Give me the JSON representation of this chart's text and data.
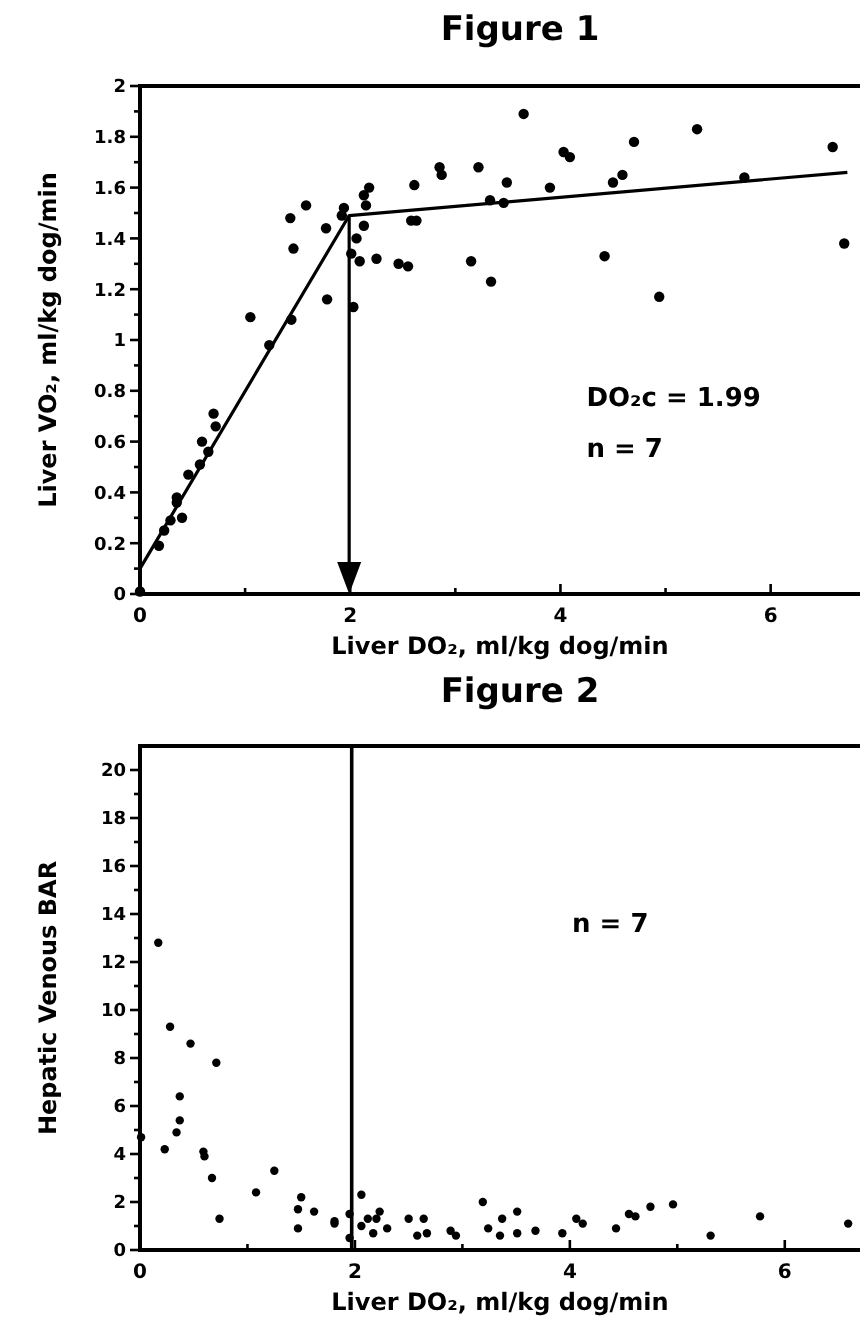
{
  "chart_data": [
    {
      "type": "scatter",
      "title": "Figure 1",
      "xlabel": "Liver DO₂, ml/kg dog/min",
      "ylabel": "Liver VO₂, ml/kg dog/min",
      "xlim": [
        0,
        6.85
      ],
      "xticks": [
        0,
        {
          "value": 1,
          "label": null
        },
        2,
        {
          "value": 3,
          "label": null
        },
        4,
        {
          "value": 5,
          "label": null
        },
        6
      ],
      "ylim": [
        0,
        2
      ],
      "yticks": [
        0,
        {
          "value": 0.1,
          "label": null
        },
        0.2,
        {
          "value": 0.3,
          "label": null
        },
        0.4,
        {
          "value": 0.5,
          "label": null
        },
        0.6,
        {
          "value": 0.7,
          "label": null
        },
        0.8,
        {
          "value": 0.9,
          "label": null
        },
        1,
        {
          "value": 1.1,
          "label": null
        },
        1.2,
        {
          "value": 1.3,
          "label": null
        },
        1.4,
        {
          "value": 1.5,
          "label": null
        },
        1.6,
        {
          "value": 1.7,
          "label": null
        },
        1.8,
        {
          "value": 1.9,
          "label": null
        },
        2
      ],
      "marker": "circle",
      "grid": false,
      "series": [
        {
          "color": "#000000",
          "x": [
            0,
            0.18,
            0.23,
            0.29,
            0.35,
            0.35,
            0.4,
            0.46,
            0.57,
            0.59,
            0.65,
            0.7,
            0.72,
            1.05,
            1.23,
            1.44,
            1.43,
            1.46,
            1.58,
            1.77,
            1.78,
            1.92,
            1.94,
            2.01,
            2.03,
            2.06,
            2.09,
            2.13,
            2.13,
            2.15,
            2.18,
            2.25,
            2.46,
            2.55,
            2.58,
            2.63,
            2.61,
            2.85,
            2.87,
            3.15,
            3.22,
            3.33,
            3.34,
            3.46,
            3.49,
            3.65,
            3.9,
            4.03,
            4.09,
            4.42,
            4.5,
            4.59,
            4.7,
            4.94,
            5.3,
            5.75,
            6.59,
            6.7
          ],
          "values": [
            0.01,
            0.19,
            0.25,
            0.29,
            0.36,
            0.38,
            0.3,
            0.47,
            0.51,
            0.6,
            0.56,
            0.71,
            0.66,
            1.09,
            0.98,
            1.08,
            1.48,
            1.36,
            1.53,
            1.44,
            1.16,
            1.49,
            1.52,
            1.34,
            1.13,
            1.4,
            1.31,
            1.45,
            1.57,
            1.53,
            1.6,
            1.32,
            1.3,
            1.29,
            1.47,
            1.47,
            1.61,
            1.68,
            1.65,
            1.31,
            1.68,
            1.55,
            1.23,
            1.54,
            1.62,
            1.89,
            1.6,
            1.74,
            1.72,
            1.33,
            1.62,
            1.65,
            1.78,
            1.17,
            1.83,
            1.64,
            1.76,
            1.38
          ]
        },
        {
          "type": "line",
          "color": "#000000",
          "marker": "none",
          "x": [
            0,
            1.99,
            6.73
          ],
          "values": [
            0.1,
            1.49,
            1.66
          ]
        }
      ],
      "ref_lines": [
        {
          "axis": "x",
          "value": 1.99
        }
      ],
      "annotations": [
        "DO₂c = 1.99",
        "n = 7"
      ]
    },
    {
      "type": "scatter",
      "title": "Figure 2",
      "xlabel": "Liver DO₂, ml/kg dog/min",
      "ylabel": "Hepatic Venous BAR",
      "xlim": [
        0,
        6.7
      ],
      "xticks": [
        0,
        {
          "value": 1,
          "label": null
        },
        2,
        {
          "value": 3,
          "label": null
        },
        4,
        {
          "value": 5,
          "label": null
        },
        6
      ],
      "ylim": [
        0,
        21
      ],
      "yticks": [
        0,
        {
          "value": 1,
          "label": null
        },
        2,
        {
          "value": 3,
          "label": null
        },
        4,
        {
          "value": 5,
          "label": null
        },
        6,
        {
          "value": 7,
          "label": null
        },
        8,
        {
          "value": 9,
          "label": null
        },
        10,
        {
          "value": 11,
          "label": null
        },
        12,
        {
          "value": 13,
          "label": null
        },
        14,
        {
          "value": 15,
          "label": null
        },
        16,
        {
          "value": 17,
          "label": null
        },
        18,
        {
          "value": 19,
          "label": null
        },
        20
      ],
      "marker": "circle",
      "grid": false,
      "series": [
        {
          "color": "#000000",
          "x": [
            0.01,
            0.17,
            0.23,
            0.28,
            0.34,
            0.37,
            0.37,
            0.47,
            0.59,
            0.6,
            0.67,
            0.71,
            0.74,
            1.08,
            1.25,
            1.47,
            1.47,
            1.5,
            1.62,
            1.81,
            1.81,
            1.95,
            1.95,
            2.06,
            2.06,
            2.12,
            2.17,
            2.2,
            2.23,
            2.3,
            2.5,
            2.58,
            2.64,
            2.67,
            2.89,
            2.94,
            3.19,
            3.24,
            3.35,
            3.37,
            3.51,
            3.51,
            3.68,
            3.93,
            4.06,
            4.12,
            4.43,
            4.55,
            4.61,
            4.75,
            4.96,
            5.31,
            5.77,
            6.59
          ],
          "values": [
            4.7,
            12.8,
            4.2,
            9.3,
            4.9,
            5.4,
            6.4,
            8.6,
            4.1,
            3.9,
            3,
            7.8,
            1.3,
            2.4,
            3.3,
            0.9,
            1.7,
            2.2,
            1.6,
            1.2,
            1.1,
            1.5,
            0.5,
            2.3,
            1,
            1.3,
            0.7,
            1.3,
            1.6,
            0.9,
            1.3,
            0.6,
            1.3,
            0.7,
            0.8,
            0.6,
            2,
            0.9,
            0.6,
            1.3,
            1.6,
            0.7,
            0.8,
            0.7,
            1.3,
            1.1,
            0.9,
            1.5,
            1.4,
            1.8,
            1.9,
            0.6,
            1.4,
            1.1
          ]
        }
      ],
      "ref_lines": [
        {
          "axis": "x",
          "value": 1.97
        }
      ],
      "annotations": [
        "n = 7"
      ]
    }
  ]
}
